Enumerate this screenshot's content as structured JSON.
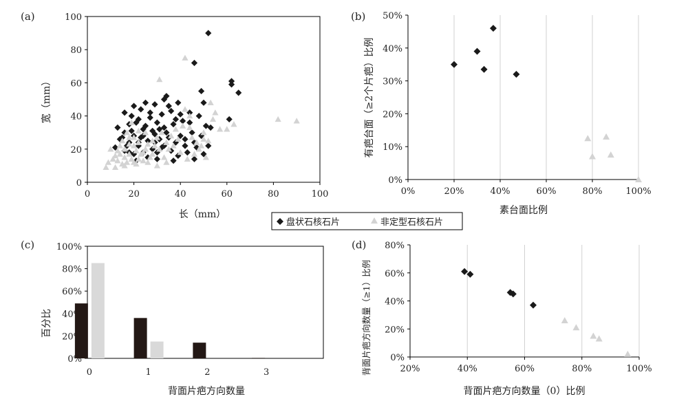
{
  "colors": {
    "disc": "#1a1a1a",
    "irregular": "#d3d3d3",
    "bar_dark": "#231815",
    "bar_light": "#d9d9d9",
    "axis": "#000000"
  },
  "legend": {
    "items": [
      {
        "label": "盘状石核石片",
        "marker": "diamond"
      },
      {
        "label": "非定型石核石片",
        "marker": "triangle"
      }
    ]
  },
  "chart_data": [
    {
      "id": "a",
      "panel_label": "(a)",
      "type": "scatter",
      "xlabel": "长（mm）",
      "ylabel": "宽（mm）",
      "xlim": [
        0,
        100
      ],
      "ylim": [
        0,
        100
      ],
      "xticks": [
        "0",
        "20",
        "40",
        "60",
        "80",
        "100"
      ],
      "yticks": [
        "0",
        "20",
        "40",
        "60",
        "80",
        "100"
      ],
      "series": [
        {
          "name": "盘状石核石片",
          "marker": "diamond",
          "points": [
            [
              52,
              90
            ],
            [
              46,
              72
            ],
            [
              62,
              61
            ],
            [
              62,
              59
            ],
            [
              65,
              54
            ],
            [
              49,
              55
            ],
            [
              39,
              48
            ],
            [
              34,
              52
            ],
            [
              33,
              50
            ],
            [
              29,
              47
            ],
            [
              25,
              48
            ],
            [
              20,
              46
            ],
            [
              23,
              44
            ],
            [
              16,
              42
            ],
            [
              19,
              40
            ],
            [
              22,
              38
            ],
            [
              27,
              39
            ],
            [
              32,
              41
            ],
            [
              36,
              43
            ],
            [
              40,
              41
            ],
            [
              44,
              42
            ],
            [
              48,
              40
            ],
            [
              50,
              48
            ],
            [
              51,
              34
            ],
            [
              53,
              33
            ],
            [
              61,
              38
            ],
            [
              30,
              36
            ],
            [
              18,
              35
            ],
            [
              13,
              33
            ],
            [
              16,
              30
            ],
            [
              20,
              28
            ],
            [
              24,
              32
            ],
            [
              28,
              31
            ],
            [
              33,
              33
            ],
            [
              37,
              35
            ],
            [
              41,
              37
            ],
            [
              45,
              30
            ],
            [
              49,
              28
            ],
            [
              52,
              22
            ],
            [
              15,
              27
            ],
            [
              18,
              24
            ],
            [
              22,
              22
            ],
            [
              26,
              25
            ],
            [
              31,
              26
            ],
            [
              35,
              27
            ],
            [
              38,
              24
            ],
            [
              42,
              22
            ],
            [
              47,
              21
            ],
            [
              50,
              17
            ],
            [
              12,
              21
            ],
            [
              16,
              19
            ],
            [
              20,
              17
            ],
            [
              24,
              18
            ],
            [
              28,
              20
            ],
            [
              32,
              21
            ],
            [
              36,
              19
            ],
            [
              39,
              16
            ],
            [
              43,
              18
            ],
            [
              46,
              14
            ],
            [
              37,
              13
            ],
            [
              30,
              14
            ],
            [
              26,
              15
            ],
            [
              21,
              13
            ],
            [
              17,
              22
            ],
            [
              23,
              27
            ],
            [
              29,
              29
            ],
            [
              34,
              30
            ],
            [
              19,
              31
            ],
            [
              25,
              34
            ],
            [
              31,
              32
            ],
            [
              35,
              46
            ],
            [
              27,
              42
            ],
            [
              21,
              36
            ],
            [
              44,
              36
            ],
            [
              38,
              38
            ],
            [
              33,
              22
            ],
            [
              29,
              24
            ],
            [
              24,
              28
            ],
            [
              40,
              28
            ],
            [
              42,
              26
            ],
            [
              46,
              24
            ],
            [
              30,
              18
            ],
            [
              22,
              24
            ],
            [
              18,
              18
            ],
            [
              14,
              26
            ]
          ]
        },
        {
          "name": "非定型石核石片",
          "marker": "triangle",
          "points": [
            [
              42,
              75
            ],
            [
              31,
              62
            ],
            [
              82,
              38
            ],
            [
              90,
              37
            ],
            [
              63,
              35
            ],
            [
              55,
              42
            ],
            [
              57,
              32
            ],
            [
              52,
              25
            ],
            [
              50,
              30
            ],
            [
              48,
              20
            ],
            [
              47,
              24
            ],
            [
              45,
              27
            ],
            [
              44,
              33
            ],
            [
              42,
              44
            ],
            [
              38,
              32
            ],
            [
              36,
              28
            ],
            [
              34,
              24
            ],
            [
              33,
              15
            ],
            [
              31,
              20
            ],
            [
              30,
              27
            ],
            [
              29,
              22
            ],
            [
              28,
              17
            ],
            [
              27,
              15
            ],
            [
              26,
              23
            ],
            [
              25,
              20
            ],
            [
              25,
              30
            ],
            [
              24,
              13
            ],
            [
              23,
              17
            ],
            [
              22,
              24
            ],
            [
              22,
              31
            ],
            [
              21,
              19
            ],
            [
              21,
              11
            ],
            [
              20,
              22
            ],
            [
              20,
              27
            ],
            [
              19,
              14
            ],
            [
              19,
              36
            ],
            [
              18,
              17
            ],
            [
              18,
              23
            ],
            [
              17,
              12
            ],
            [
              17,
              30
            ],
            [
              16,
              20
            ],
            [
              16,
              15
            ],
            [
              15,
              25
            ],
            [
              15,
              11
            ],
            [
              14,
              17
            ],
            [
              14,
              22
            ],
            [
              13,
              13
            ],
            [
              13,
              19
            ],
            [
              12,
              16
            ],
            [
              11,
              14
            ],
            [
              10,
              20
            ],
            [
              9,
              12
            ],
            [
              8,
              9
            ],
            [
              12,
              9
            ],
            [
              16,
              10
            ],
            [
              20,
              12
            ],
            [
              24,
              18
            ],
            [
              28,
              25
            ],
            [
              32,
              30
            ],
            [
              35,
              20
            ],
            [
              37,
              22
            ],
            [
              40,
              18
            ],
            [
              43,
              14
            ],
            [
              46,
              17
            ],
            [
              49,
              22
            ],
            [
              51,
              15
            ],
            [
              53,
              48
            ],
            [
              60,
              32
            ],
            [
              39,
              26
            ],
            [
              41,
              34
            ],
            [
              18,
              27
            ],
            [
              22,
              14
            ],
            [
              26,
              12
            ],
            [
              30,
              10
            ],
            [
              34,
              12
            ],
            [
              44,
              40
            ],
            [
              54,
              38
            ],
            [
              50,
              26
            ]
          ]
        }
      ]
    },
    {
      "id": "b",
      "panel_label": "(b)",
      "type": "scatter",
      "xlabel": "素台面比例",
      "ylabel": "有疤台面（≥2个片疤）比例",
      "xlim": [
        0,
        100
      ],
      "ylim": [
        0,
        50
      ],
      "xticks": [
        "0%",
        "20%",
        "40%",
        "60%",
        "80%",
        "100%"
      ],
      "yticks": [
        "0%",
        "10%",
        "20%",
        "30%",
        "40%",
        "50%"
      ],
      "series": [
        {
          "name": "盘状石核石片",
          "marker": "diamond",
          "points": [
            [
              20,
              35
            ],
            [
              30,
              39
            ],
            [
              33,
              33.5
            ],
            [
              37,
              46
            ],
            [
              47,
              32
            ]
          ]
        },
        {
          "name": "非定型石核石片",
          "marker": "triangle",
          "points": [
            [
              78,
              12.5
            ],
            [
              80,
              7
            ],
            [
              86,
              13
            ],
            [
              88,
              7.5
            ],
            [
              100,
              0
            ]
          ]
        }
      ]
    },
    {
      "id": "c",
      "panel_label": "(c)",
      "type": "bar",
      "xlabel": "背面片疤方向数量",
      "ylabel": "百分比",
      "categories": [
        "0",
        "1",
        "2",
        "3"
      ],
      "ylim": [
        0,
        100
      ],
      "yticks": [
        "0%",
        "20%",
        "40%",
        "60%",
        "80%",
        "100%"
      ],
      "series": [
        {
          "name": "盘状石核石片",
          "values": [
            49,
            36,
            14,
            0.4
          ]
        },
        {
          "name": "非定型石核石片",
          "values": [
            85,
            15,
            0,
            0
          ]
        }
      ]
    },
    {
      "id": "d",
      "panel_label": "(d)",
      "type": "scatter",
      "xlabel": "背面片疤方向数量（0）比例",
      "ylabel": "背面片疤方向数量（≥1）比例",
      "xlim": [
        20,
        100
      ],
      "ylim": [
        0,
        80
      ],
      "xticks": [
        "20%",
        "40%",
        "60%",
        "80%",
        "100%"
      ],
      "yticks": [
        "0%",
        "20%",
        "40%",
        "60%",
        "80%"
      ],
      "series": [
        {
          "name": "盘状石核石片",
          "marker": "diamond",
          "points": [
            [
              39,
              61
            ],
            [
              41,
              59
            ],
            [
              55,
              46
            ],
            [
              56,
              45
            ],
            [
              63,
              37
            ]
          ]
        },
        {
          "name": "非定型石核石片",
          "marker": "triangle",
          "points": [
            [
              74,
              26
            ],
            [
              78,
              21
            ],
            [
              84,
              15
            ],
            [
              86,
              13
            ],
            [
              96,
              2
            ]
          ]
        }
      ]
    }
  ]
}
